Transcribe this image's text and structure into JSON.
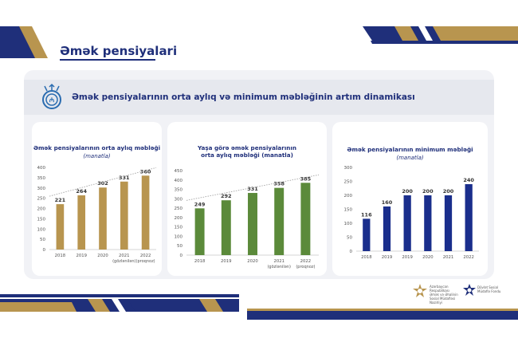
{
  "slide": {
    "title": "Əmək pensiyalari",
    "subtitle": "Əmək pensiyalarının orta aylıq və minimum məbləğinin artım dinamikası"
  },
  "footer": {
    "logo1_text": "Azərbaycan Respublikası Əmək və Əhalinin Sosial Müdafiəsi Nazirliyi",
    "logo2_text": "Dövlət Sosial Müdafiə Fondu"
  },
  "colors": {
    "navy": "#1f2f7a",
    "gold": "#b8954f",
    "green": "#5b8a3a",
    "bluebar": "#1a2e8c"
  },
  "chart_data": [
    {
      "type": "bar",
      "title": "Əmək pensiyalarının orta aylıq məbləği",
      "unit": "(manatla)",
      "categories": [
        "2018",
        "2019",
        "2020",
        "2021",
        "2022"
      ],
      "category_notes": [
        "",
        "",
        "",
        "(gözlənilən)",
        "(proqnoz)"
      ],
      "values": [
        221,
        264,
        302,
        331,
        360
      ],
      "ylim": [
        0,
        400
      ],
      "yticks": [
        0,
        50,
        100,
        150,
        200,
        250,
        300,
        350,
        400
      ],
      "color": "#b8954f",
      "trendline": true
    },
    {
      "type": "bar",
      "title": "Yaşa görə əmək pensiyalarının orta aylıq məbləği (manatla)",
      "unit": "",
      "categories": [
        "2018",
        "2019",
        "2020",
        "2021",
        "2022"
      ],
      "category_notes": [
        "",
        "",
        "",
        "(gözlənilən)",
        "(proqnoz)"
      ],
      "values": [
        249,
        292,
        331,
        358,
        385
      ],
      "ylim": [
        0,
        450
      ],
      "yticks": [
        0,
        50,
        100,
        150,
        200,
        250,
        300,
        350,
        400,
        450
      ],
      "color": "#5b8a3a",
      "trendline": true
    },
    {
      "type": "bar",
      "title": "Əmək pensiyalarının minimum məbləği",
      "unit": "(manatla)",
      "categories": [
        "2018",
        "2019",
        "2019",
        "2020",
        "2021",
        "2022"
      ],
      "category_notes": [
        "",
        "",
        "",
        "",
        "",
        ""
      ],
      "values": [
        116,
        160,
        200,
        200,
        200,
        240
      ],
      "ylim": [
        0,
        300
      ],
      "yticks": [
        0,
        50,
        100,
        150,
        200,
        250,
        300
      ],
      "color": "#1a2e8c",
      "trendline": false
    }
  ]
}
